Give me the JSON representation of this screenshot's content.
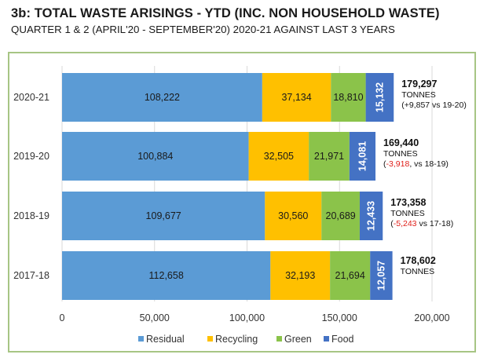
{
  "header": {
    "title": "3b: TOTAL WASTE ARISINGS - YTD (INC. NON HOUSEHOLD WASTE)",
    "subtitle": "QUARTER 1 & 2 (APRIL'20 - SEPTEMBER'20) 2020-21 AGAINST LAST 3 YEARS"
  },
  "colors": {
    "residual": "#5b9bd5",
    "recycling": "#ffc000",
    "green": "#8bc34a",
    "food": "#4472c4",
    "frame": "#a7c584",
    "negative": "#e0201b"
  },
  "chart_data": {
    "type": "bar",
    "orientation": "horizontal",
    "stacked": true,
    "categories": [
      "2020-21",
      "2019-20",
      "2018-19",
      "2017-18"
    ],
    "series": [
      {
        "name": "Residual",
        "values": [
          108222,
          100884,
          109677,
          112658
        ],
        "labels": [
          "108,222",
          "100,884",
          "109,677",
          "112,658"
        ]
      },
      {
        "name": "Recycling",
        "values": [
          37134,
          32505,
          30560,
          32193
        ],
        "labels": [
          "37,134",
          "32,505",
          "30,560",
          "32,193"
        ]
      },
      {
        "name": "Green",
        "values": [
          18810,
          21971,
          20689,
          21694
        ],
        "labels": [
          "18,810",
          "21,971",
          "20,689",
          "21,694"
        ]
      },
      {
        "name": "Food",
        "values": [
          15132,
          14081,
          12433,
          12057
        ],
        "labels": [
          "15,132",
          "14,081",
          "12,433",
          "12,057"
        ]
      }
    ],
    "xlim": [
      0,
      200000
    ],
    "x_ticks": [
      0,
      50000,
      100000,
      150000,
      200000
    ],
    "x_tick_labels": [
      "0",
      "50,000",
      "100,000",
      "150,000",
      "200,000"
    ],
    "legend_position": "bottom",
    "annotations": [
      {
        "total": "179,297",
        "unit": "TONNES",
        "pre": "(+9,857 vs 19-20)",
        "neg": "",
        "post": ""
      },
      {
        "total": "169,440",
        "unit": "TONNES",
        "pre": "(",
        "neg": "-3,918",
        "post": ", vs 18-19)"
      },
      {
        "total": "173,358",
        "unit": "TONNES",
        "pre": "(",
        "neg": "-5,243",
        "post": " vs 17-18)"
      },
      {
        "total": "178,602",
        "unit": "TONNES",
        "pre": "",
        "neg": "",
        "post": ""
      }
    ]
  }
}
